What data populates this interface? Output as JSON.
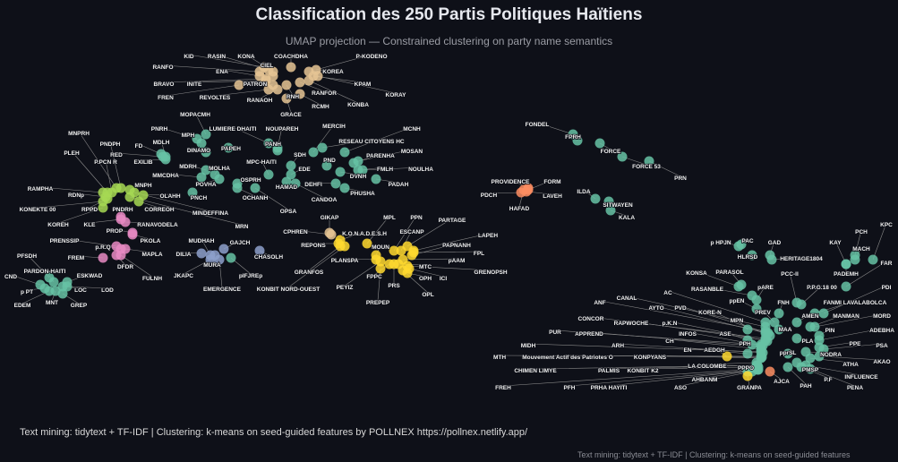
{
  "title": "Classification des 250 Partis Politiques Haïtiens",
  "subtitle": "UMAP projection — Constrained clustering on party name semantics",
  "caption": "Text mining: tidytext + TF-IDF | Clustering: k-means on seed-guided features by POLLNEX https://pollnex.netlify.app/",
  "caption_repeat": "Text mining: tidytext + TF-IDF | Clustering: k-means on seed-guided features",
  "chart_data": {
    "type": "scatter",
    "title": "Classification des 250 Partis Politiques Haïtiens",
    "subtitle": "UMAP projection — Constrained clustering on party name semantics",
    "background": "#0e1018",
    "grid": false,
    "legend": "none",
    "cluster_colors": [
      "#e5c494",
      "#66c2a5",
      "#a6d854",
      "#e78ac3",
      "#8da0cb",
      "#ffd92f",
      "#fc8d62"
    ],
    "point_fields": [
      "label",
      "cluster",
      "x",
      "y"
    ],
    "points": [
      [
        "KID",
        0,
        -20.5,
        18.5
      ],
      [
        "RASIN",
        0,
        -20,
        18.2
      ],
      [
        "KONA",
        0,
        -19.5,
        18
      ],
      [
        "COACHDHA",
        0,
        -17.5,
        18.5
      ],
      [
        "P-KODENO",
        0,
        -14.7,
        18.2
      ],
      [
        "RANFO",
        0,
        -21,
        18
      ],
      [
        "ENA",
        0,
        -21,
        17.5
      ],
      [
        "CIEL",
        0,
        -19.5,
        17.5
      ],
      [
        "KOREA",
        0,
        -15.5,
        18
      ],
      [
        "BRAVO",
        0,
        -20.3,
        17.2
      ],
      [
        "INITE",
        0,
        -20.3,
        17
      ],
      [
        "PATRON",
        0,
        -19.5,
        16.5
      ],
      [
        "KPAM",
        0,
        -15,
        17.5
      ],
      [
        "FREN",
        0,
        -23.3,
        16.5
      ],
      [
        "REVOLTES",
        0,
        -20,
        16
      ],
      [
        "RANAOH",
        0,
        -19,
        16
      ],
      [
        "RNH",
        0,
        -18,
        16.5
      ],
      [
        "RANFOR",
        0,
        -16.5,
        16.8
      ],
      [
        "KORAY",
        0,
        -14.5,
        17.5
      ],
      [
        "RCMH",
        0,
        -16.5,
        15.5
      ],
      [
        "KONBA",
        0,
        -15.5,
        17
      ],
      [
        "GRACE",
        0,
        -18,
        15
      ],
      [
        "MOPACMH",
        1,
        -27,
        11
      ],
      [
        "PNRH",
        1,
        -28,
        10.5
      ],
      [
        "MPH",
        1,
        -27.5,
        10
      ],
      [
        "LUMIERE DHAITI",
        1,
        -20,
        10
      ],
      [
        "NOUPAREH",
        1,
        -19,
        9.5
      ],
      [
        "MERCIH",
        1,
        -15,
        9
      ],
      [
        "MCNH",
        1,
        -11.5,
        9
      ],
      [
        "MDLH",
        1,
        -31.5,
        8.5
      ],
      [
        "DINAMO",
        1,
        -27,
        9
      ],
      [
        "PAPEH",
        1,
        -24.5,
        9.5
      ],
      [
        "PANH",
        1,
        -19,
        9.2
      ],
      [
        "SDH",
        1,
        -17.5,
        7.5
      ],
      [
        "RESEAU CITOYENS HC",
        1,
        -14,
        9.5
      ],
      [
        "MOSAN",
        1,
        -10,
        8
      ],
      [
        "FD",
        1,
        -32,
        8.8
      ],
      [
        "RED",
        1,
        -31.8,
        8.5
      ],
      [
        "EXILIB",
        1,
        -31.5,
        8.2
      ],
      [
        "MDRH",
        1,
        -27,
        7
      ],
      [
        "MOLHA",
        1,
        -26,
        6.5
      ],
      [
        "MPC-HAITI",
        1,
        -20,
        6.5
      ],
      [
        "PND",
        1,
        -13.5,
        7.5
      ],
      [
        "PARENHA",
        1,
        -10.5,
        7.8
      ],
      [
        "FMLH",
        1,
        -10,
        7
      ],
      [
        "NOULHA",
        1,
        -9.5,
        7
      ],
      [
        "EDE",
        1,
        -17.5,
        6.5
      ],
      [
        "DVNH",
        1,
        -12,
        6.8
      ],
      [
        "MMCDHA",
        1,
        -27.5,
        6.2
      ],
      [
        "POVHA",
        1,
        -25.5,
        6
      ],
      [
        "OSPRH",
        1,
        -23.5,
        5.5
      ],
      [
        "HAMAD",
        1,
        -18,
        5.7
      ],
      [
        "DEHFI",
        1,
        -12.5,
        5.5
      ],
      [
        "PADAH",
        1,
        -8,
        6
      ],
      [
        "PHUSHA",
        1,
        -11.5,
        5
      ],
      [
        "PNCH",
        1,
        -28.5,
        4.5
      ],
      [
        "OCHANH",
        1,
        -23.5,
        5
      ],
      [
        "CANDOA",
        1,
        -17,
        5.5
      ],
      [
        "OPSA",
        1,
        -21.5,
        5
      ],
      [
        "MINDEFFINA",
        2,
        -35,
        4.5
      ],
      [
        "MRN",
        2,
        -35.5,
        4
      ],
      [
        "MNPRH",
        2,
        -37,
        5
      ],
      [
        "PNDPH",
        2,
        -36.5,
        5
      ],
      [
        "PLEH",
        2,
        -38,
        4.5
      ],
      [
        "P.PCN R",
        2,
        -37.5,
        4.5
      ],
      [
        "MNPH",
        2,
        -35.5,
        4.8
      ],
      [
        "RAMPHA",
        2,
        -38.5,
        4.5
      ],
      [
        "RDNp",
        2,
        -38.2,
        4
      ],
      [
        "OLAHH",
        2,
        -34,
        4.2
      ],
      [
        "KONEKTE 00",
        2,
        -38.5,
        3.5
      ],
      [
        "RPPD",
        2,
        -38,
        3.8
      ],
      [
        "CORREOH",
        2,
        -34.5,
        3.5
      ],
      [
        "KOREH",
        2,
        -38.5,
        2.8
      ],
      [
        "PNDRH",
        3,
        -36.5,
        1.8
      ],
      [
        "KLE",
        3,
        -36.5,
        1.5
      ],
      [
        "RANAVODELA",
        3,
        -36,
        1.2
      ],
      [
        "PROP",
        3,
        -35.2,
        0
      ],
      [
        "PKOLA",
        3,
        -35.2,
        -0.2
      ],
      [
        "PRENSSIP",
        3,
        -37,
        -1.5
      ],
      [
        "p.R.Q",
        3,
        -36.5,
        -1.8
      ],
      [
        "FREM",
        3,
        -38.5,
        -2.8
      ],
      [
        "MAPLA",
        3,
        -36,
        -1.8
      ],
      [
        "DFDR",
        3,
        -37,
        -2.5
      ],
      [
        "FULNH",
        3,
        -36.5,
        -2.5
      ],
      [
        "PFSDH",
        1,
        -44.5,
        -5
      ],
      [
        "PARDON-HAITI",
        1,
        -44,
        -5.5
      ],
      [
        "ESKWAD",
        1,
        -42.5,
        -5.5
      ],
      [
        "CND",
        1,
        -45.5,
        -5.8
      ],
      [
        "p PT",
        1,
        -45,
        -6.2
      ],
      [
        "LOC",
        1,
        -43,
        -6
      ],
      [
        "LOD",
        1,
        -42.5,
        -6
      ],
      [
        "EDEM",
        1,
        -44.5,
        -6.5
      ],
      [
        "MNT",
        1,
        -43.8,
        -6.5
      ],
      [
        "GREP",
        1,
        -43,
        -6.8
      ],
      [
        "MUDHAH",
        4,
        -26.5,
        -2.5
      ],
      [
        "GAJCH",
        4,
        -25,
        -1.8
      ],
      [
        "DILIA",
        4,
        -27.5,
        -2.3
      ],
      [
        "MURA",
        4,
        -26,
        -2.5
      ],
      [
        "JKAPC",
        4,
        -26.5,
        -3
      ],
      [
        "pIFJREp",
        1,
        -24.2,
        -2.8
      ],
      [
        "EMERGENCE",
        4,
        -25.5,
        -3
      ],
      [
        "CHASOLH",
        4,
        -21,
        -2
      ],
      [
        "GIKAP",
        0,
        -13.2,
        0
      ],
      [
        "CPHREN",
        0,
        -13,
        -0.2
      ],
      [
        "K.O.N.A.D.E.S.H",
        5,
        -12,
        -0.8
      ],
      [
        "REPONS",
        5,
        -12.2,
        -1.2
      ],
      [
        "MPL",
        5,
        -9,
        -1.2
      ],
      [
        "PPN",
        5,
        -6,
        -2
      ],
      [
        "PARTAGE",
        5,
        -4.5,
        -1.5
      ],
      [
        "ESCANP",
        5,
        -5.2,
        -2
      ],
      [
        "LAPEH",
        5,
        -3.8,
        -2
      ],
      [
        "MOUN",
        5,
        -8,
        -2.5
      ],
      [
        "PAPNANH",
        5,
        -4,
        -2.5
      ],
      [
        "PLANSPA",
        5,
        -8,
        -3
      ],
      [
        "FPL",
        5,
        -3.8,
        -2.2
      ],
      [
        "pAAM",
        5,
        -5,
        -3
      ],
      [
        "GRANFOS",
        5,
        -12,
        -1.5
      ],
      [
        "MTC",
        5,
        -5.5,
        -3.5
      ],
      [
        "GRENOPSH",
        5,
        -4.5,
        -3.7
      ],
      [
        "FPPC",
        5,
        -6.5,
        -3.5
      ],
      [
        "OPH",
        5,
        -4.5,
        -4.5
      ],
      [
        "ICI",
        5,
        -4.3,
        -4
      ],
      [
        "KONBIT NORD-OUEST",
        5,
        -11.5,
        -1.5
      ],
      [
        "PEYIZ",
        5,
        -7.5,
        -3.2
      ],
      [
        "PRS",
        5,
        -6,
        -3.5
      ],
      [
        "OPL",
        5,
        -5,
        -4.2
      ],
      [
        "PREPEP",
        5,
        -7.5,
        -4
      ],
      [
        "FONDEL",
        1,
        14,
        11
      ],
      [
        "FPRH",
        1,
        14.5,
        10.3
      ],
      [
        "FORCE",
        1,
        17,
        10
      ],
      [
        "FORCE 53",
        1,
        19.5,
        8.5
      ],
      [
        "PRN",
        1,
        22.5,
        8
      ],
      [
        "ILDA",
        1,
        16.5,
        3.8
      ],
      [
        "SITWAYEN",
        1,
        18,
        3.5
      ],
      [
        "KALA",
        1,
        18.2,
        2.5
      ],
      [
        "PROVIDENCE",
        6,
        9,
        5
      ],
      [
        "FORM",
        6,
        9,
        4.8
      ],
      [
        "PDCH",
        6,
        8.2,
        4.5
      ],
      [
        "LAVEH",
        6,
        8.8,
        4.6
      ],
      [
        "HAFAD",
        6,
        8.5,
        4.8
      ],
      [
        "KPC",
        1,
        47.5,
        -3
      ],
      [
        "PCH",
        1,
        45.5,
        -2.5
      ],
      [
        "p HPJN",
        1,
        32.5,
        -1.5
      ],
      [
        "PAC",
        1,
        32.8,
        -1.3
      ],
      [
        "GAD",
        1,
        36,
        -2.5
      ],
      [
        "KAY",
        1,
        44.5,
        -3.5
      ],
      [
        "HLRSD",
        1,
        34,
        -2.5
      ],
      [
        "HERITAGE1804",
        1,
        36.2,
        -3
      ],
      [
        "MACH",
        1,
        45.5,
        -3
      ],
      [
        "FAR",
        1,
        44.5,
        -6
      ],
      [
        "PADEMH",
        1,
        44.5,
        -3.5
      ],
      [
        "KONSA",
        1,
        32.5,
        -6
      ],
      [
        "PARASOL",
        1,
        32.8,
        -5.8
      ],
      [
        "PCC-II",
        1,
        39,
        -7.8
      ],
      [
        "RASANBLE",
        1,
        34,
        -7
      ],
      [
        "pARE",
        1,
        34.5,
        -7.5
      ],
      [
        "P.P.G.18 00",
        1,
        39.5,
        -8
      ],
      [
        "PDI",
        1,
        42,
        -9
      ],
      [
        "AC",
        1,
        35.5,
        -10
      ],
      [
        "ppEN",
        1,
        34.5,
        -8.5
      ],
      [
        "CANAL",
        1,
        35.5,
        -10.5
      ],
      [
        "FNH",
        1,
        37,
        -9
      ],
      [
        "FANMI LAVALABOLCA",
        1,
        41,
        -9
      ],
      [
        "ANF",
        1,
        35.5,
        -11
      ],
      [
        "AYTO",
        1,
        35.5,
        -11.2
      ],
      [
        "PVD",
        1,
        35.8,
        -11.2
      ],
      [
        "PREV",
        1,
        36.5,
        -10
      ],
      [
        "KORE-N",
        1,
        36,
        -11.5
      ],
      [
        "AMEN",
        1,
        39,
        -10
      ],
      [
        "MANMAN",
        1,
        40.5,
        -10.5
      ],
      [
        "MORD",
        1,
        41,
        -10.5
      ],
      [
        "CONCOR",
        1,
        35.5,
        -11.8
      ],
      [
        "MPN",
        1,
        33.5,
        -10.8
      ],
      [
        "RAPWOCHE",
        1,
        35.5,
        -12
      ],
      [
        "p.K.N",
        1,
        35.7,
        -12.1
      ],
      [
        "MAA",
        1,
        37,
        -10.8
      ],
      [
        "PIN",
        1,
        41.5,
        -11.5
      ],
      [
        "ADEBHA",
        1,
        41.5,
        -12
      ],
      [
        "PUR",
        1,
        35,
        -12.5
      ],
      [
        "APPREND",
        1,
        35,
        -12.7
      ],
      [
        "INFOS",
        1,
        35.2,
        -12.6
      ],
      [
        "ASE",
        1,
        33.5,
        -12
      ],
      [
        "CH",
        1,
        35,
        -13
      ],
      [
        "PPH",
        1,
        34,
        -12.5
      ],
      [
        "PLA",
        1,
        39,
        -11.8
      ],
      [
        "PPE",
        1,
        41.5,
        -12.8
      ],
      [
        "PSA",
        1,
        42,
        -13
      ],
      [
        "MIDH",
        1,
        35,
        -13.3
      ],
      [
        "ARH",
        1,
        35.2,
        -13.4
      ],
      [
        "EN",
        1,
        33.5,
        -13.5
      ],
      [
        "AEDGH",
        5,
        31.2,
        -13.8
      ],
      [
        "pprSL",
        1,
        38,
        -13.5
      ],
      [
        "NODRA",
        1,
        40,
        -13.3
      ],
      [
        "MTH",
        1,
        35,
        -13.8
      ],
      [
        "Mouvement Actif des Patriotes O",
        1,
        35.1,
        -13.9
      ],
      [
        "KONPYANS",
        1,
        35,
        -14
      ],
      [
        "ATHA",
        1,
        40.5,
        -14
      ],
      [
        "AKAO",
        1,
        41.5,
        -13.8
      ],
      [
        "LA COLOMBE",
        1,
        34.5,
        -14.5
      ],
      [
        "PPPO",
        1,
        34.5,
        -15
      ],
      [
        "PMSP",
        1,
        39,
        -14.5
      ],
      [
        "CHIMEN LIMYE",
        1,
        34.5,
        -14.8
      ],
      [
        "PALMIS",
        1,
        34.6,
        -14.8
      ],
      [
        "KONBIT K2",
        1,
        34.7,
        -15
      ],
      [
        "INFLUENCE",
        1,
        40,
        -14.8
      ],
      [
        "AHBANM",
        1,
        33.5,
        -15.5
      ],
      [
        "P.F",
        1,
        39.5,
        -15
      ],
      [
        "FREH",
        1,
        34.5,
        -15.2
      ],
      [
        "PFH",
        1,
        34.6,
        -15.3
      ],
      [
        "PRHA HAYITI",
        1,
        34.7,
        -15.3
      ],
      [
        "ASO",
        1,
        34,
        -15.5
      ],
      [
        "GRANPA",
        5,
        33.5,
        -16
      ],
      [
        "AJCA",
        6,
        36,
        -15.5
      ],
      [
        "PAH",
        1,
        38,
        -15
      ],
      [
        "PENA",
        1,
        40.5,
        -15.2
      ]
    ]
  }
}
